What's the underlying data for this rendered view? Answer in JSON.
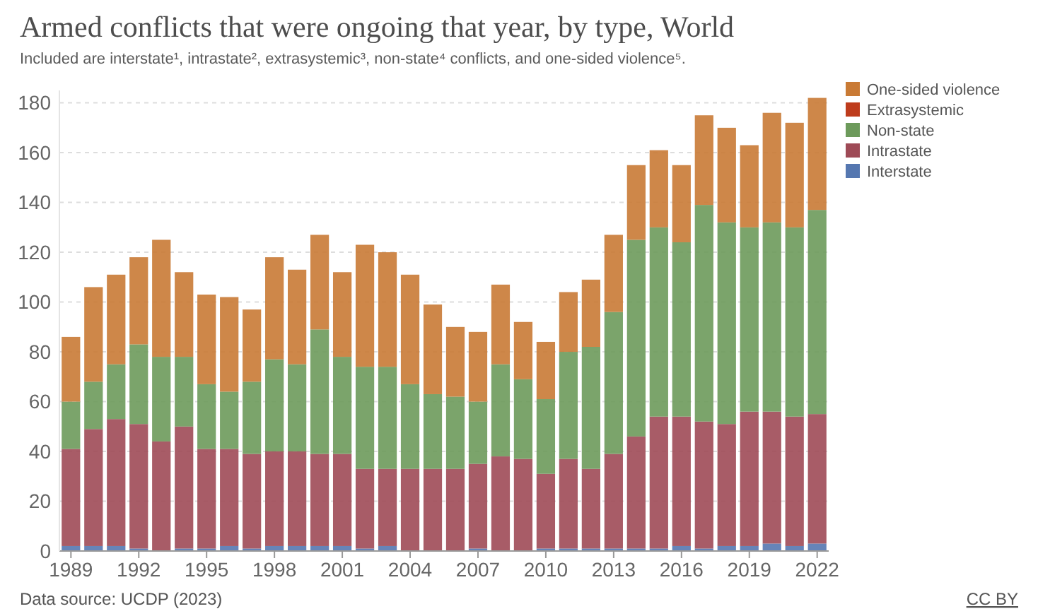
{
  "chart_data": {
    "type": "bar",
    "stacked": true,
    "title": "Armed conflicts that were ongoing that year, by type, World",
    "subtitle": "Included are interstate¹, intrastate², extrasystemic³, non-state⁴ conflicts, and one-sided violence⁵.",
    "categories": [
      "1989",
      null,
      null,
      "1992",
      null,
      null,
      "1995",
      null,
      null,
      "1998",
      null,
      null,
      "2001",
      null,
      null,
      "2004",
      null,
      null,
      "2007",
      null,
      null,
      "2010",
      null,
      null,
      "2013",
      null,
      null,
      "2016",
      null,
      null,
      "2019",
      null,
      null,
      "2022"
    ],
    "series": [
      {
        "name": "Interstate",
        "color": "#5577b0",
        "values": [
          2,
          2,
          2,
          1,
          0,
          1,
          1,
          2,
          1,
          2,
          2,
          2,
          2,
          1,
          2,
          0,
          0,
          0,
          1,
          0,
          0,
          1,
          1,
          1,
          1,
          1,
          1,
          2,
          1,
          2,
          2,
          3,
          2,
          3
        ]
      },
      {
        "name": "Intrastate",
        "color": "#9e4a56",
        "values": [
          39,
          47,
          51,
          50,
          44,
          49,
          40,
          39,
          38,
          38,
          38,
          37,
          37,
          32,
          31,
          33,
          33,
          33,
          34,
          38,
          37,
          30,
          36,
          32,
          38,
          45,
          53,
          52,
          51,
          49,
          54,
          53,
          52,
          52
        ]
      },
      {
        "name": "Non-state",
        "color": "#6d9a5b",
        "values": [
          19,
          19,
          22,
          32,
          34,
          28,
          26,
          23,
          29,
          37,
          35,
          50,
          39,
          41,
          41,
          34,
          30,
          29,
          25,
          37,
          32,
          30,
          43,
          49,
          57,
          79,
          76,
          70,
          87,
          81,
          74,
          76,
          76,
          82
        ]
      },
      {
        "name": "Extrasystemic",
        "color": "#be3c1c",
        "values": [
          0,
          0,
          0,
          0,
          0,
          0,
          0,
          0,
          0,
          0,
          0,
          0,
          0,
          0,
          0,
          0,
          0,
          0,
          0,
          0,
          0,
          0,
          0,
          0,
          0,
          0,
          0,
          0,
          0,
          0,
          0,
          0,
          0,
          0
        ]
      },
      {
        "name": "One-sided violence",
        "color": "#c97a35",
        "values": [
          26,
          38,
          36,
          35,
          47,
          34,
          36,
          38,
          29,
          41,
          38,
          38,
          34,
          49,
          46,
          44,
          36,
          28,
          28,
          32,
          23,
          23,
          24,
          27,
          31,
          30,
          31,
          31,
          36,
          38,
          33,
          44,
          42,
          45
        ]
      }
    ],
    "ylim": [
      0,
      185
    ],
    "yticks": [
      0,
      20,
      40,
      60,
      80,
      100,
      120,
      140,
      160,
      180
    ],
    "grid": "y",
    "legend": "top right",
    "annotations": [
      "Data source: UCDP (2023)",
      "CC BY"
    ]
  }
}
